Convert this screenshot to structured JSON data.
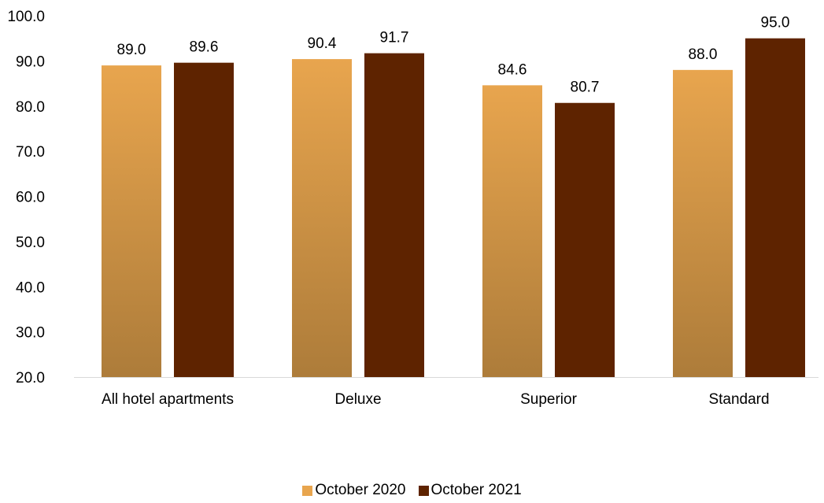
{
  "chart_data": {
    "type": "bar",
    "title": "",
    "xlabel": "",
    "ylabel": "",
    "ylim": [
      20,
      100
    ],
    "yticks": [
      "20.0",
      "30.0",
      "40.0",
      "50.0",
      "60.0",
      "70.0",
      "80.0",
      "90.0",
      "100.0"
    ],
    "categories": [
      "All hotel apartments",
      "Deluxe",
      "Superior",
      "Standard"
    ],
    "series": [
      {
        "name": "October 2020",
        "values": [
          89.0,
          90.4,
          84.6,
          88.0
        ],
        "labels": [
          "89.0",
          "90.4",
          "84.6",
          "88.0"
        ],
        "color": "#e8a54e",
        "color_bottom": "#ad7c3a"
      },
      {
        "name": "October 2021",
        "values": [
          89.6,
          91.7,
          80.7,
          95.0
        ],
        "labels": [
          "89.6",
          "91.7",
          "80.7",
          "95.0"
        ],
        "color": "#5e2300",
        "color_bottom": "#5e2300"
      }
    ],
    "grid": false,
    "legend_position": "bottom"
  }
}
